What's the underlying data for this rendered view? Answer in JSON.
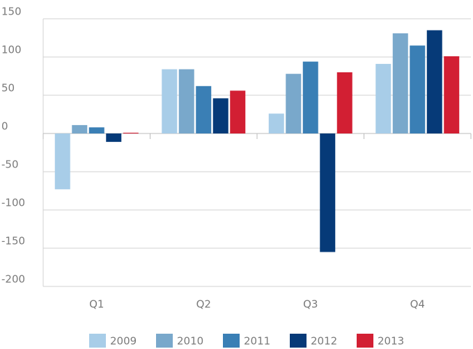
{
  "chart_data": {
    "type": "bar",
    "categories": [
      "Q1",
      "Q2",
      "Q3",
      "Q4"
    ],
    "series": [
      {
        "name": "2009",
        "color": "#a8cde8",
        "values": [
          -73,
          84,
          26,
          91
        ]
      },
      {
        "name": "2010",
        "color": "#79a8cb",
        "values": [
          11,
          84,
          78,
          131
        ]
      },
      {
        "name": "2011",
        "color": "#3a7fb5",
        "values": [
          8,
          62,
          94,
          115
        ]
      },
      {
        "name": "2012",
        "color": "#063a78",
        "values": [
          -11,
          46,
          -155,
          135
        ]
      },
      {
        "name": "2013",
        "color": "#d21f33",
        "values": [
          1,
          56,
          80,
          101
        ]
      }
    ],
    "ylim": [
      -200,
      150
    ],
    "yticks": [
      -200,
      -150,
      -100,
      -50,
      0,
      50,
      100,
      150
    ],
    "grid": true,
    "legend": "bottom"
  }
}
